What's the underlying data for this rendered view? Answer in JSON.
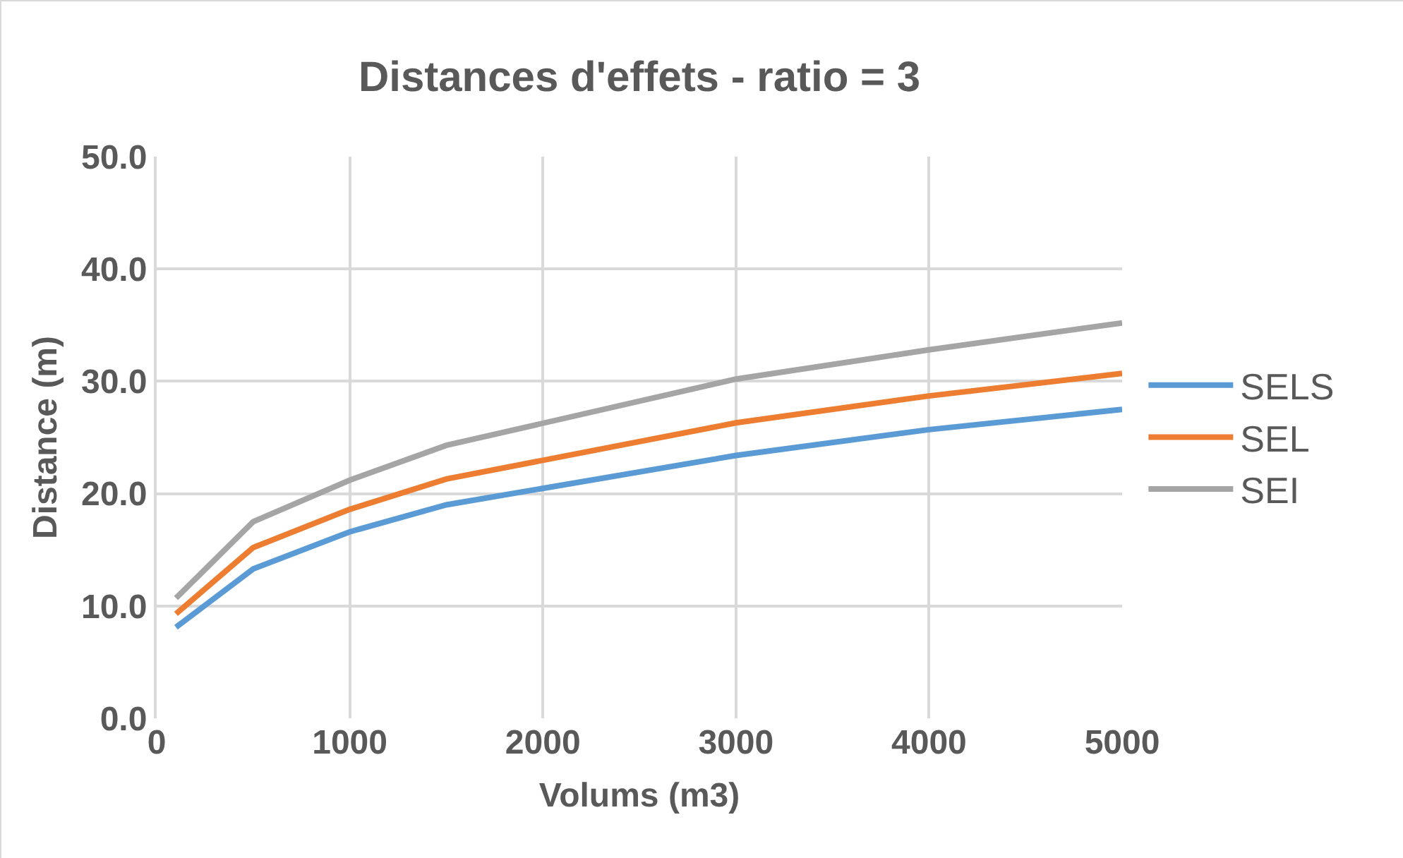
{
  "chart_data": {
    "type": "line",
    "title": "Distances d'effets - ratio = 3",
    "xlabel": "Volums (m3)",
    "ylabel": "Distance (m)",
    "x": [
      100,
      500,
      1000,
      1500,
      3000,
      4000,
      5000
    ],
    "series": [
      {
        "name": "SELS",
        "color": "#5b9bd5",
        "values": [
          8.1,
          13.3,
          16.6,
          19.0,
          23.4,
          25.7,
          27.5
        ]
      },
      {
        "name": "SEL",
        "color": "#ed7d31",
        "values": [
          9.3,
          15.2,
          18.6,
          21.3,
          26.3,
          28.7,
          30.7
        ]
      },
      {
        "name": "SEI",
        "color": "#a5a5a5",
        "values": [
          10.7,
          17.5,
          21.2,
          24.3,
          30.2,
          32.8,
          35.2
        ]
      }
    ],
    "xlim": [
      0,
      5000
    ],
    "xticks": [
      0,
      1000,
      2000,
      3000,
      4000,
      5000
    ],
    "ylim": [
      0,
      50
    ],
    "yticks": [
      {
        "value": 0,
        "label": "0.0"
      },
      {
        "value": 10,
        "label": "10.0"
      },
      {
        "value": 20,
        "label": "20.0"
      },
      {
        "value": 30,
        "label": "30.0"
      },
      {
        "value": 40,
        "label": "40.0"
      },
      {
        "value": 50,
        "label": "50.0"
      }
    ],
    "grid": true,
    "legend": "right",
    "marker": "none",
    "line_style": "solid"
  }
}
